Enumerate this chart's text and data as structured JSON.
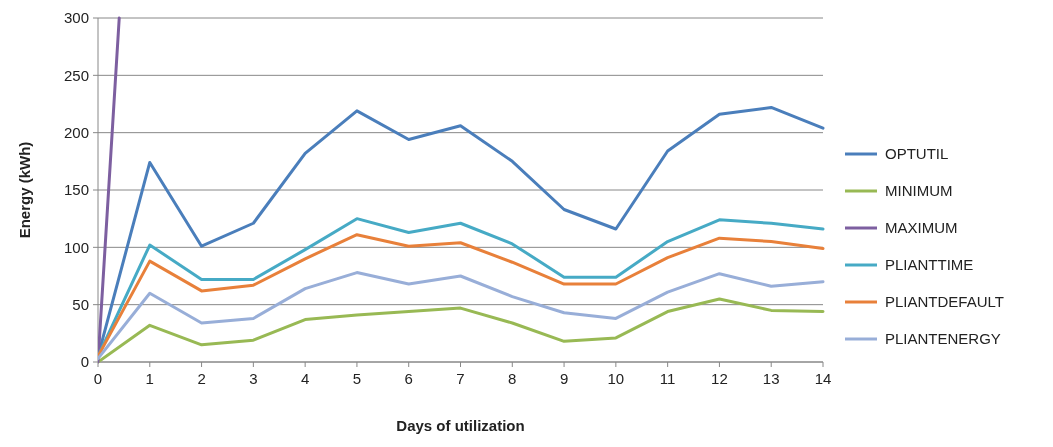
{
  "chart_data": {
    "type": "line",
    "xlabel": "Days of utilization",
    "ylabel": "Energy (kWh)",
    "x": [
      0,
      1,
      2,
      3,
      4,
      5,
      6,
      7,
      8,
      9,
      10,
      11,
      12,
      13,
      14
    ],
    "xlim": [
      0,
      14
    ],
    "xticks": [
      0,
      1,
      2,
      3,
      4,
      5,
      6,
      7,
      8,
      9,
      10,
      11,
      12,
      13,
      14
    ],
    "ylim": [
      0,
      300
    ],
    "yticks": [
      0,
      50,
      100,
      150,
      200,
      250,
      300
    ],
    "grid": "y",
    "legend": "right",
    "marker": "none",
    "line_style": "solid",
    "series": [
      {
        "name": "OPTUTIL",
        "color": "#4a7ebb",
        "values": [
          5,
          174,
          101,
          121,
          182,
          219,
          194,
          206,
          175,
          133,
          116,
          184,
          216,
          222,
          204
        ]
      },
      {
        "name": "MINIMUM",
        "color": "#98b954",
        "values": [
          0,
          32,
          15,
          19,
          37,
          41,
          44,
          47,
          34,
          18,
          21,
          44,
          55,
          45,
          44
        ]
      },
      {
        "name": "MAXIMUM",
        "color": "#7d5fa0",
        "x": [
          0,
          0.41
        ],
        "values": [
          0,
          300
        ]
      },
      {
        "name": "PLIANTTIME",
        "color": "#46aac5",
        "values": [
          5,
          102,
          72,
          72,
          98,
          125,
          113,
          121,
          103,
          74,
          74,
          105,
          124,
          121,
          116
        ]
      },
      {
        "name": "PLIANTDEFAULT",
        "color": "#e8803a",
        "values": [
          5,
          88,
          62,
          67,
          90,
          111,
          101,
          104,
          87,
          68,
          68,
          91,
          108,
          105,
          99
        ]
      },
      {
        "name": "PLIANTENERGY",
        "color": "#98aed8",
        "values": [
          3,
          60,
          34,
          38,
          64,
          78,
          68,
          75,
          57,
          43,
          38,
          61,
          77,
          66,
          70
        ]
      }
    ]
  }
}
